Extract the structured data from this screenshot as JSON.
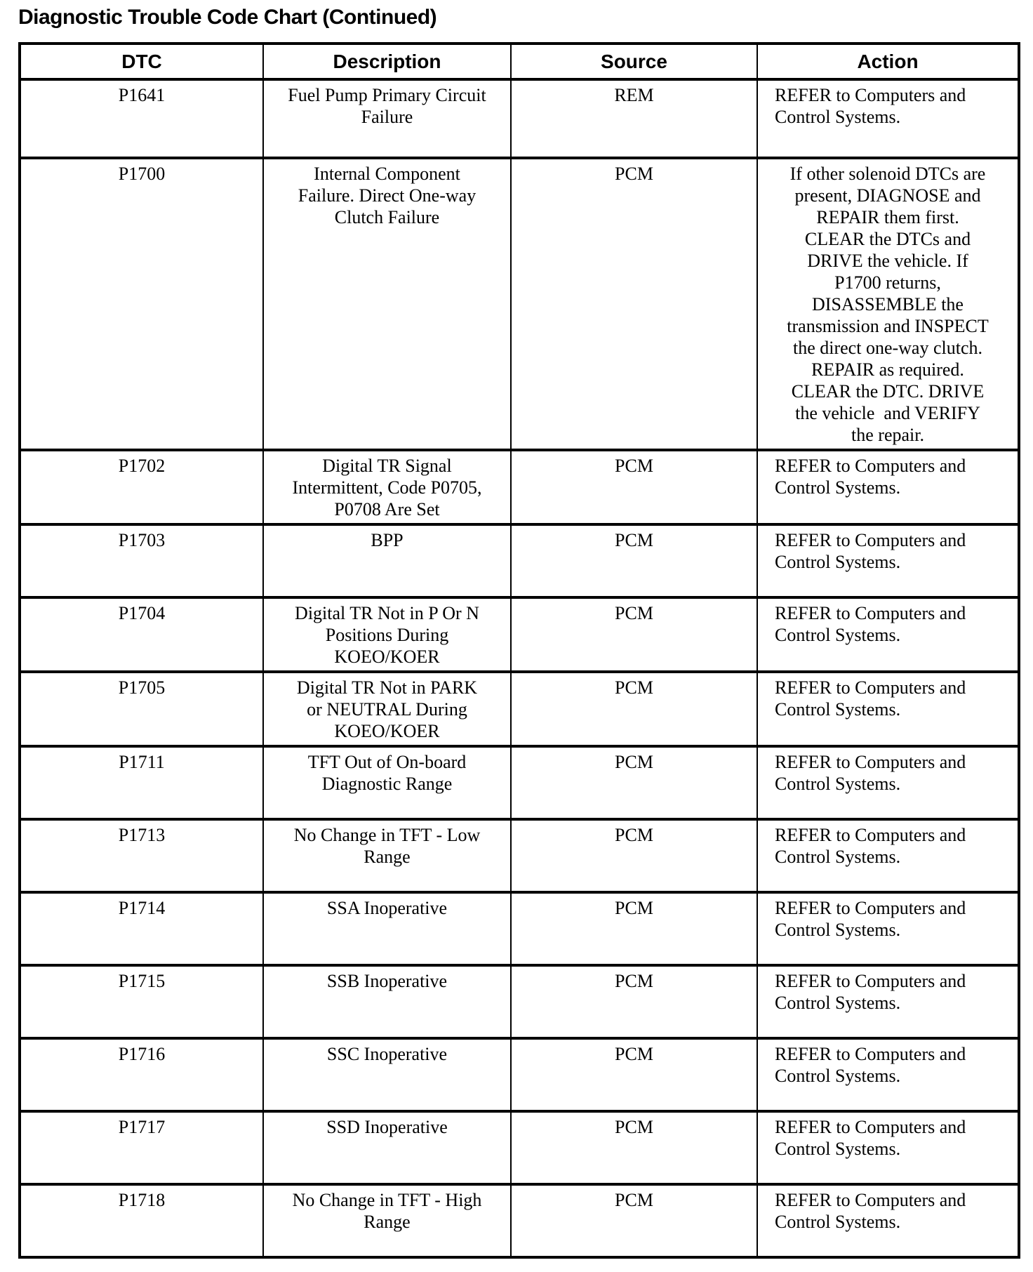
{
  "title": "Diagnostic Trouble Code Chart (Continued)",
  "colors": {
    "text": "#000000",
    "background": "#ffffff",
    "border": "#000000"
  },
  "table": {
    "columns": [
      "DTC",
      "Description",
      "Source",
      "Action"
    ],
    "rows": [
      {
        "dtc": "P1641",
        "description": "Fuel Pump Primary Circuit\nFailure",
        "source": "REM",
        "action": "REFER to Computers and\nControl Systems."
      },
      {
        "dtc": "P1700",
        "description": "Internal Component\nFailure. Direct One-way\nClutch Failure",
        "source": "PCM",
        "action": "If other solenoid DTCs are\npresent, DIAGNOSE and\nREPAIR them first.\nCLEAR the DTCs and\nDRIVE the vehicle. If\nP1700 returns,\nDISASSEMBLE the\ntransmission and INSPECT\nthe direct one-way clutch.\nREPAIR as required.\nCLEAR the DTC. DRIVE\nthe vehicle  and VERIFY\nthe repair."
      },
      {
        "dtc": "P1702",
        "description": "Digital TR Signal\nIntermittent, Code P0705,\nP0708 Are Set",
        "source": "PCM",
        "action": "REFER to Computers and\nControl Systems."
      },
      {
        "dtc": "P1703",
        "description": "BPP",
        "source": "PCM",
        "action": "REFER to Computers and\nControl Systems."
      },
      {
        "dtc": "P1704",
        "description": "Digital TR Not in P Or N\nPositions During\nKOEO/KOER",
        "source": "PCM",
        "action": "REFER to Computers and\nControl Systems."
      },
      {
        "dtc": "P1705",
        "description": "Digital TR Not in PARK\nor NEUTRAL During\nKOEO/KOER",
        "source": "PCM",
        "action": "REFER to Computers and\nControl Systems."
      },
      {
        "dtc": "P1711",
        "description": "TFT Out of On-board\nDiagnostic Range",
        "source": "PCM",
        "action": "REFER to Computers and\nControl Systems."
      },
      {
        "dtc": "P1713",
        "description": "No Change in TFT - Low\nRange",
        "source": "PCM",
        "action": "REFER to Computers and\nControl Systems."
      },
      {
        "dtc": "P1714",
        "description": "SSA Inoperative",
        "source": "PCM",
        "action": "REFER to Computers and\nControl Systems."
      },
      {
        "dtc": "P1715",
        "description": "SSB Inoperative",
        "source": "PCM",
        "action": "REFER to Computers and\nControl Systems."
      },
      {
        "dtc": "P1716",
        "description": "SSC Inoperative",
        "source": "PCM",
        "action": "REFER to Computers and\nControl Systems."
      },
      {
        "dtc": "P1717",
        "description": "SSD Inoperative",
        "source": "PCM",
        "action": "REFER to Computers and\nControl Systems."
      },
      {
        "dtc": "P1718",
        "description": "No Change in TFT - High\nRange",
        "source": "PCM",
        "action": "REFER to Computers and\nControl Systems."
      }
    ]
  }
}
